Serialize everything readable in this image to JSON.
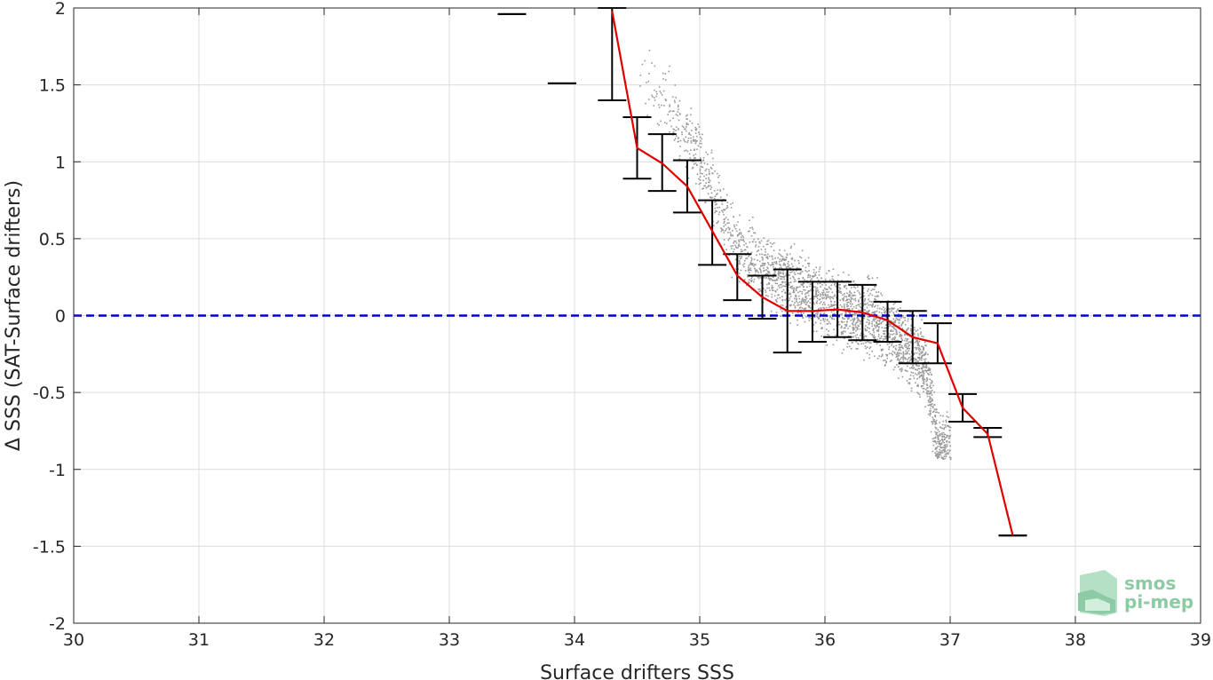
{
  "chart_data": {
    "type": "scatter",
    "title": "",
    "xlabel": "Surface drifters SSS",
    "ylabel": "Δ SSS (SAT-Surface drifters)",
    "xlim": [
      30,
      39
    ],
    "ylim": [
      -2,
      2
    ],
    "xticks": [
      30,
      31,
      32,
      33,
      34,
      35,
      36,
      37,
      38,
      39
    ],
    "yticks": [
      -2,
      -1.5,
      -1,
      -0.5,
      0,
      0.5,
      1,
      1.5,
      2
    ],
    "grid": true,
    "legend": "none",
    "series": [
      {
        "kind": "reference-line",
        "y": 0,
        "color": "#0000cc",
        "style": "dashed"
      },
      {
        "kind": "binned-median-line",
        "color": "#e00000",
        "x": [
          34.3,
          34.5,
          34.7,
          34.9,
          35.1,
          35.3,
          35.5,
          35.7,
          35.9,
          36.1,
          36.3,
          36.5,
          36.7,
          36.9,
          37.1,
          37.3,
          37.5
        ],
        "y": [
          1.98,
          1.09,
          0.99,
          0.84,
          0.55,
          0.26,
          0.12,
          0.03,
          0.03,
          0.04,
          0.02,
          -0.03,
          -0.14,
          -0.18,
          -0.6,
          -0.77,
          -1.43
        ]
      },
      {
        "kind": "error-bars",
        "color": "#000000",
        "bars": [
          {
            "x": 33.5,
            "low": 1.96,
            "high": 1.96
          },
          {
            "x": 33.9,
            "low": 1.51,
            "high": 1.51
          },
          {
            "x": 34.3,
            "low": 1.4,
            "high": 2.0
          },
          {
            "x": 34.5,
            "low": 0.89,
            "high": 1.29
          },
          {
            "x": 34.7,
            "low": 0.81,
            "high": 1.18
          },
          {
            "x": 34.9,
            "low": 0.67,
            "high": 1.01
          },
          {
            "x": 35.1,
            "low": 0.33,
            "high": 0.75
          },
          {
            "x": 35.3,
            "low": 0.1,
            "high": 0.4
          },
          {
            "x": 35.5,
            "low": -0.02,
            "high": 0.26
          },
          {
            "x": 35.7,
            "low": -0.24,
            "high": 0.3
          },
          {
            "x": 35.9,
            "low": -0.17,
            "high": 0.22
          },
          {
            "x": 36.1,
            "low": -0.14,
            "high": 0.22
          },
          {
            "x": 36.3,
            "low": -0.16,
            "high": 0.2
          },
          {
            "x": 36.5,
            "low": -0.17,
            "high": 0.09
          },
          {
            "x": 36.7,
            "low": -0.31,
            "high": 0.03
          },
          {
            "x": 36.9,
            "low": -0.31,
            "high": -0.05
          },
          {
            "x": 37.1,
            "low": -0.69,
            "high": -0.51
          },
          {
            "x": 37.3,
            "low": -0.79,
            "high": -0.73
          },
          {
            "x": 37.5,
            "low": -1.43,
            "high": -1.43
          }
        ]
      },
      {
        "kind": "scatter-cloud",
        "color": "#999999",
        "x_range": [
          34.5,
          37.0
        ],
        "y_range": [
          -0.93,
          1.75
        ],
        "approx_trend_points": [
          {
            "x": 34.6,
            "y": 1.5
          },
          {
            "x": 35.0,
            "y": 1.0
          },
          {
            "x": 35.3,
            "y": 0.4
          },
          {
            "x": 35.7,
            "y": 0.2
          },
          {
            "x": 36.0,
            "y": 0.05
          },
          {
            "x": 36.4,
            "y": -0.05
          },
          {
            "x": 36.8,
            "y": -0.35
          },
          {
            "x": 36.9,
            "y": -0.9
          }
        ]
      }
    ]
  },
  "logo": {
    "line1": "smos",
    "line2": "pi-mep"
  }
}
